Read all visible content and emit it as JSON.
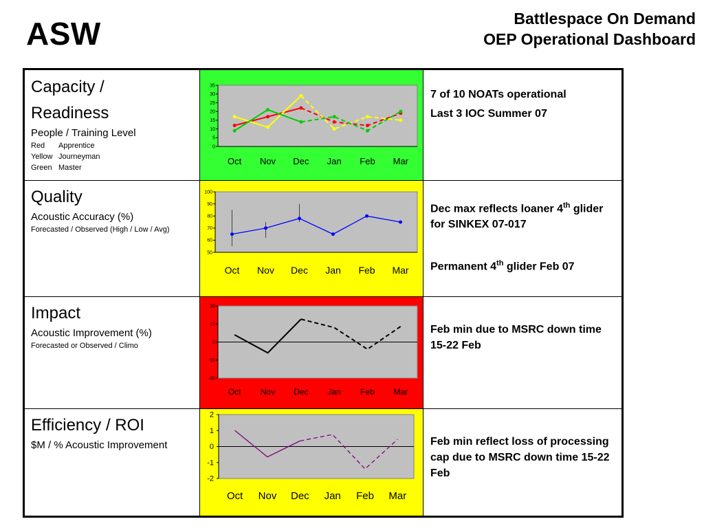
{
  "header": {
    "section": "ASW",
    "title_line1": "Battlespace On Demand",
    "title_line2": "OEP Operational Dashboard"
  },
  "rows": [
    {
      "title_line1": "Capacity /",
      "title_line2": "Readiness",
      "subtitle": "People / Training Level",
      "legend": [
        {
          "color": "Red",
          "level": "Apprentice"
        },
        {
          "color": "Yellow",
          "level": "Journeyman"
        },
        {
          "color": "Green",
          "level": "Master"
        }
      ],
      "status_color": "#33ff33",
      "comments": [
        "7 of 10 NOATs operational",
        "Last 3 IOC Summer 07"
      ]
    },
    {
      "title_line1": "Quality",
      "subtitle": "Acoustic Accuracy (%)",
      "note": "Forecasted / Observed  (High / Low / Avg)",
      "status_color": "#ffff00",
      "comments": [
        {
          "text": "Dec max reflects loaner 4",
          "sup": "th",
          "rest": " glider for SINKEX 07-017"
        },
        {
          "text": "Permanent 4",
          "sup": "th",
          "rest": " glider Feb 07"
        }
      ]
    },
    {
      "title_line1": "Impact",
      "subtitle": "Acoustic Improvement (%)",
      "note": "Forecasted or Observed / Climo",
      "status_color": "#ff0000",
      "comments": [
        "Feb min due to MSRC down time 15-22 Feb"
      ]
    },
    {
      "title_line1": "Efficiency / ROI",
      "subtitle": "$M / % Acoustic Improvement",
      "status_color": "#ffff00",
      "comments": [
        "Feb min reflect loss of processing cap due to MSRC down time 15-22 Feb"
      ]
    }
  ],
  "chart_data": [
    {
      "type": "line",
      "categories": [
        "Oct",
        "Nov",
        "Dec",
        "Jan",
        "Feb",
        "Mar"
      ],
      "ylim": [
        0,
        35
      ],
      "yticks": [
        0,
        5,
        10,
        15,
        20,
        25,
        30,
        35
      ],
      "grid": false,
      "plot_bg": "#c0c0c0",
      "solid_until_index": 2,
      "series": [
        {
          "color": "#ff0000",
          "values": [
            12,
            17,
            22,
            14,
            12,
            19
          ]
        },
        {
          "color": "#ffff00",
          "values": [
            17,
            11,
            29,
            10,
            17,
            15
          ]
        },
        {
          "color": "#00cc00",
          "values": [
            9,
            21,
            14,
            17,
            9,
            20
          ]
        }
      ]
    },
    {
      "type": "line",
      "categories": [
        "Oct",
        "Nov",
        "Dec",
        "Jan",
        "Feb",
        "Mar"
      ],
      "ylim": [
        50,
        100
      ],
      "yticks": [
        50,
        60,
        70,
        80,
        90,
        100
      ],
      "grid": false,
      "plot_bg": "#c0c0c0",
      "series": [
        {
          "color": "#0000ff",
          "values": [
            65,
            70,
            78,
            65,
            80,
            75
          ]
        }
      ],
      "error_bars": [
        {
          "index": 0,
          "high": 85,
          "low": 55
        },
        {
          "index": 1,
          "high": 75,
          "low": 62
        },
        {
          "index": 2,
          "high": 90,
          "low": 75
        }
      ]
    },
    {
      "type": "line",
      "categories": [
        "Oct",
        "Nov",
        "Dec",
        "Jan",
        "Feb",
        "Mar"
      ],
      "ylim": [
        -30,
        30
      ],
      "yticks": [
        -30,
        -15,
        0,
        15,
        30
      ],
      "grid": false,
      "plot_bg": "#c0c0c0",
      "solid_until_index": 2,
      "series": [
        {
          "color": "#000000",
          "values": [
            6,
            -9,
            19,
            12,
            -6,
            13
          ]
        }
      ]
    },
    {
      "type": "line",
      "categories": [
        "Oct",
        "Nov",
        "Dec",
        "Jan",
        "Feb",
        "Mar"
      ],
      "ylim": [
        -2,
        2
      ],
      "yticks": [
        -2,
        -1,
        0,
        1,
        2
      ],
      "grid": false,
      "plot_bg": "#c0c0c0",
      "solid_until_index": 2,
      "series": [
        {
          "color": "#800080",
          "values": [
            1.0,
            -0.65,
            0.35,
            0.75,
            -1.4,
            0.45
          ]
        }
      ]
    }
  ]
}
